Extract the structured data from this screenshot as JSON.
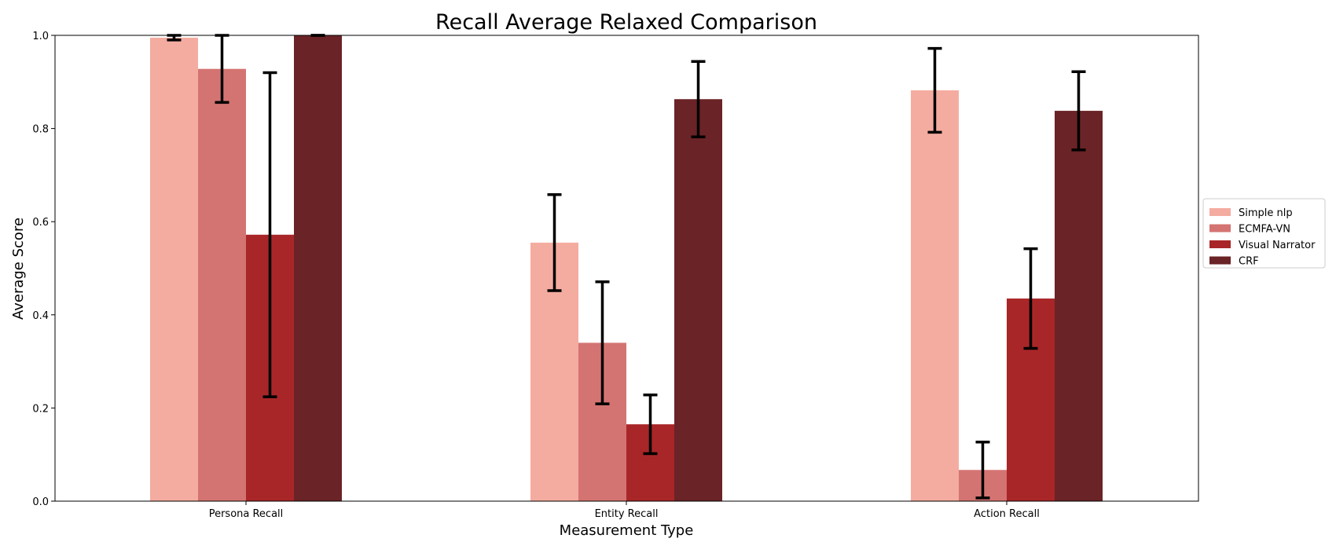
{
  "chart_data": {
    "type": "bar",
    "title": "Recall Average Relaxed Comparison",
    "xlabel": "Measurement Type",
    "ylabel": "Average Score",
    "ylim": [
      0,
      1.0
    ],
    "yticks": [
      "0.0",
      "0.2",
      "0.4",
      "0.6",
      "0.8",
      "1.0"
    ],
    "categories": [
      "Persona Recall",
      "Entity Recall",
      "Action Recall"
    ],
    "grid": false,
    "legend_position": "right",
    "series": [
      {
        "name": "Simple nlp",
        "color": "#f4aca0",
        "values": [
          0.995,
          0.555,
          0.882
        ],
        "errors": [
          0.005,
          0.103,
          0.09
        ]
      },
      {
        "name": "ECMFA-VN",
        "color": "#d47472",
        "values": [
          0.928,
          0.34,
          0.067
        ],
        "errors": [
          0.072,
          0.131,
          0.06
        ]
      },
      {
        "name": "Visual Narrator",
        "color": "#a92628",
        "values": [
          0.572,
          0.165,
          0.435
        ],
        "errors": [
          0.348,
          0.063,
          0.107
        ]
      },
      {
        "name": "CRF",
        "color": "#6a2326",
        "values": [
          1.0,
          0.863,
          0.838
        ],
        "errors": [
          0.0,
          0.081,
          0.084
        ]
      }
    ]
  }
}
